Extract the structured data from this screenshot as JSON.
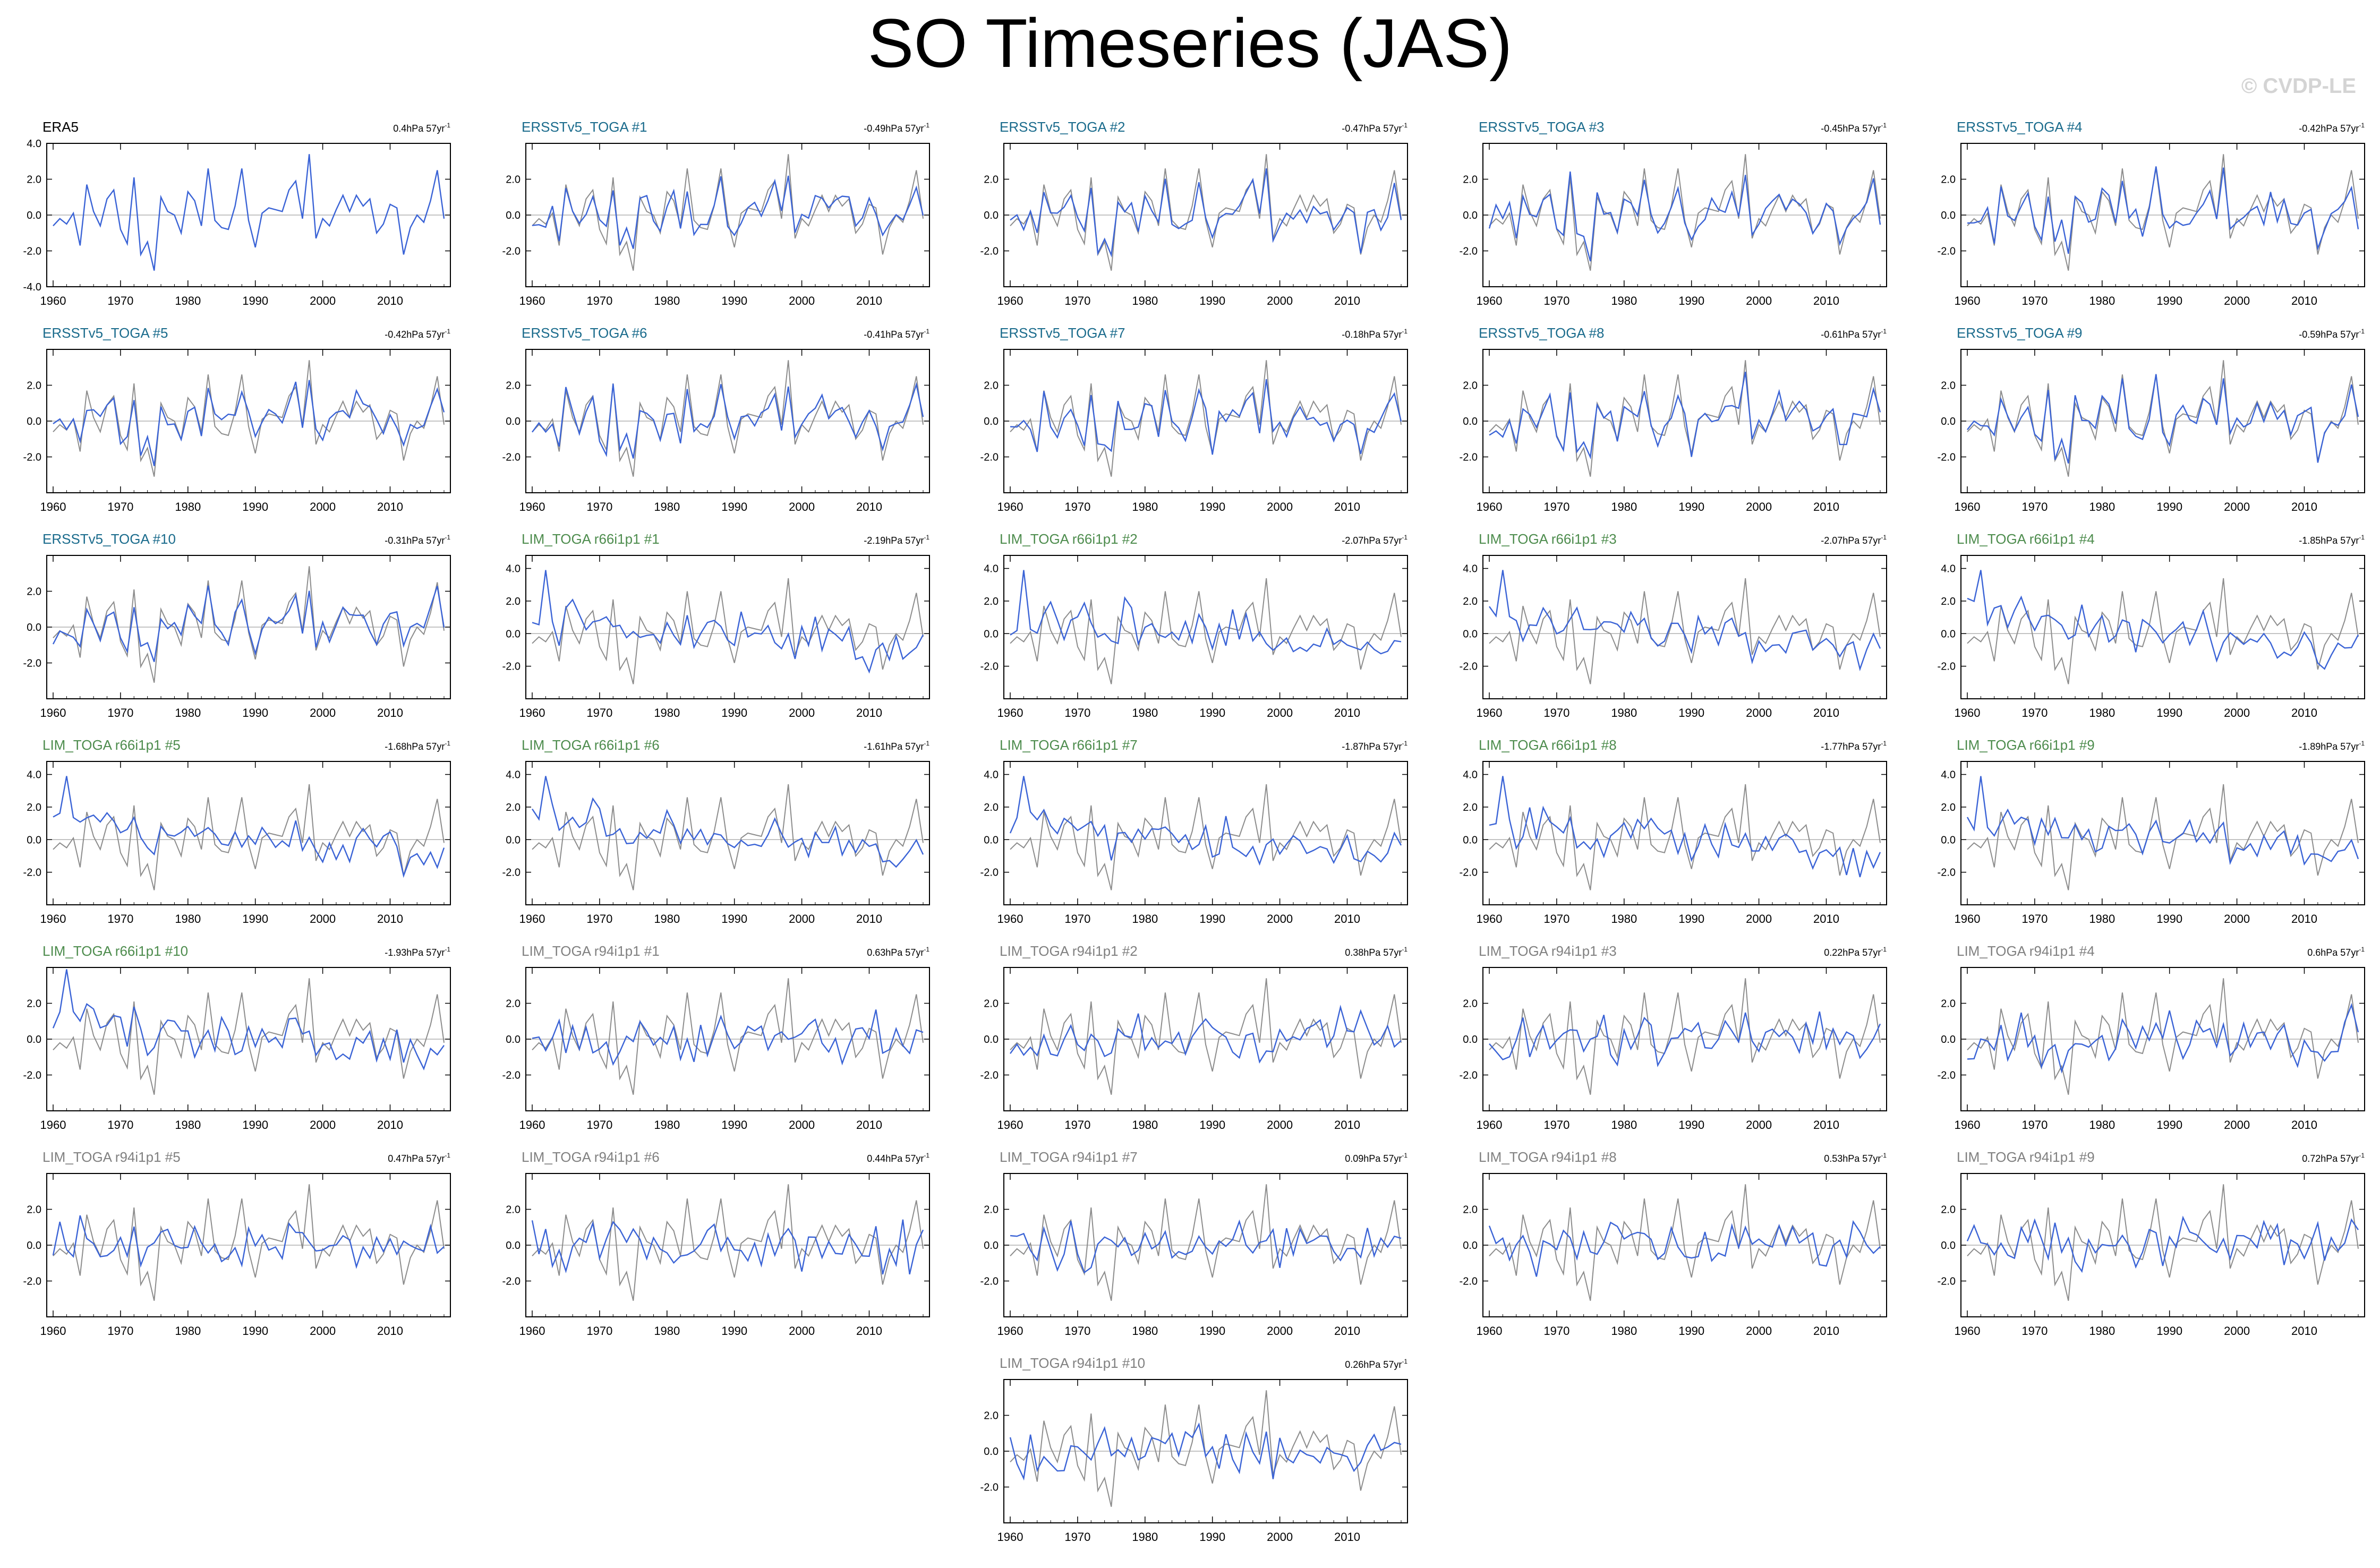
{
  "title": "SO Timeseries (JAS)",
  "watermark": "© CVDP-LE",
  "colors": {
    "obs_line": "#8c8c8c",
    "model_line": "#3a63d6",
    "zero_line": "#b0b0b0",
    "title_era5": "#000000",
    "title_ersst": "#1a6b8c",
    "title_lim66": "#4d8c4d",
    "title_lim94": "#808080"
  },
  "obs_values": [
    -0.6,
    -0.2,
    -0.5,
    0.1,
    -1.7,
    1.7,
    0.2,
    -0.6,
    0.9,
    1.4,
    -0.8,
    -1.6,
    2.1,
    -2.2,
    -1.5,
    -3.1,
    1.0,
    0.2,
    0.0,
    -1.0,
    1.3,
    0.8,
    -0.6,
    2.6,
    -0.3,
    -0.7,
    -0.8,
    0.5,
    2.6,
    -0.3,
    -1.8,
    0.1,
    0.4,
    0.3,
    0.2,
    1.4,
    1.9,
    -0.2,
    3.4,
    -1.3,
    -0.2,
    -0.6,
    0.3,
    1.1,
    0.2,
    1.1,
    0.5,
    0.9,
    -1.0,
    -0.5,
    0.6,
    0.4,
    -2.2,
    -0.7,
    0.0,
    -0.4,
    0.8,
    2.5,
    -0.2
  ],
  "chart_data": [
    {
      "type": "line",
      "title": "ERA5",
      "trend": "0.4hPa 57yr",
      "ylim": [
        -4,
        4
      ],
      "yticks": [
        "4.0",
        "2.0",
        "0.0",
        "-2.0",
        "-4.0"
      ],
      "x_start": 1960,
      "xticks": [
        "1960",
        "1970",
        "1980",
        "1990",
        "2000",
        "2010"
      ],
      "group": "era5",
      "seed": 0
    },
    {
      "type": "line",
      "title": "ERSSTv5_TOGA #1",
      "trend": "-0.49hPa 57yr",
      "ylim": [
        -4,
        4
      ],
      "yticks": [
        "2.0",
        "0.0",
        "-2.0"
      ],
      "x_start": 1960,
      "xticks": [
        "1960",
        "1970",
        "1980",
        "1990",
        "2000",
        "2010"
      ],
      "group": "ersst",
      "seed": 1
    },
    {
      "type": "line",
      "title": "ERSSTv5_TOGA #2",
      "trend": "-0.47hPa 57yr",
      "ylim": [
        -4,
        4
      ],
      "yticks": [
        "2.0",
        "0.0",
        "-2.0"
      ],
      "x_start": 1960,
      "xticks": [
        "1960",
        "1970",
        "1980",
        "1990",
        "2000",
        "2010"
      ],
      "group": "ersst",
      "seed": 2
    },
    {
      "type": "line",
      "title": "ERSSTv5_TOGA #3",
      "trend": "-0.45hPa 57yr",
      "ylim": [
        -4,
        4
      ],
      "yticks": [
        "2.0",
        "0.0",
        "-2.0"
      ],
      "x_start": 1960,
      "xticks": [
        "1960",
        "1970",
        "1980",
        "1990",
        "2000",
        "2010"
      ],
      "group": "ersst",
      "seed": 3
    },
    {
      "type": "line",
      "title": "ERSSTv5_TOGA #4",
      "trend": "-0.42hPa 57yr",
      "ylim": [
        -4,
        4
      ],
      "yticks": [
        "2.0",
        "0.0",
        "-2.0"
      ],
      "x_start": 1960,
      "xticks": [
        "1960",
        "1970",
        "1980",
        "1990",
        "2000",
        "2010"
      ],
      "group": "ersst",
      "seed": 4
    },
    {
      "type": "line",
      "title": "ERSSTv5_TOGA #5",
      "trend": "-0.42hPa 57yr",
      "ylim": [
        -4,
        4
      ],
      "yticks": [
        "2.0",
        "0.0",
        "-2.0"
      ],
      "x_start": 1960,
      "xticks": [
        "1960",
        "1970",
        "1980",
        "1990",
        "2000",
        "2010"
      ],
      "group": "ersst",
      "seed": 5
    },
    {
      "type": "line",
      "title": "ERSSTv5_TOGA #6",
      "trend": "-0.41hPa 57yr",
      "ylim": [
        -4,
        4
      ],
      "yticks": [
        "2.0",
        "0.0",
        "-2.0"
      ],
      "x_start": 1960,
      "xticks": [
        "1960",
        "1970",
        "1980",
        "1990",
        "2000",
        "2010"
      ],
      "group": "ersst",
      "seed": 6
    },
    {
      "type": "line",
      "title": "ERSSTv5_TOGA #7",
      "trend": "-0.18hPa 57yr",
      "ylim": [
        -4,
        4
      ],
      "yticks": [
        "2.0",
        "0.0",
        "-2.0"
      ],
      "x_start": 1960,
      "xticks": [
        "1960",
        "1970",
        "1980",
        "1990",
        "2000",
        "2010"
      ],
      "group": "ersst",
      "seed": 7
    },
    {
      "type": "line",
      "title": "ERSSTv5_TOGA #8",
      "trend": "-0.61hPa 57yr",
      "ylim": [
        -4,
        4
      ],
      "yticks": [
        "2.0",
        "0.0",
        "-2.0"
      ],
      "x_start": 1960,
      "xticks": [
        "1960",
        "1970",
        "1980",
        "1990",
        "2000",
        "2010"
      ],
      "group": "ersst",
      "seed": 8
    },
    {
      "type": "line",
      "title": "ERSSTv5_TOGA #9",
      "trend": "-0.59hPa 57yr",
      "ylim": [
        -4,
        4
      ],
      "yticks": [
        "2.0",
        "0.0",
        "-2.0"
      ],
      "x_start": 1960,
      "xticks": [
        "1960",
        "1970",
        "1980",
        "1990",
        "2000",
        "2010"
      ],
      "group": "ersst",
      "seed": 9
    },
    {
      "type": "line",
      "title": "ERSSTv5_TOGA #10",
      "trend": "-0.31hPa 57yr",
      "ylim": [
        -4,
        4
      ],
      "yticks": [
        "2.0",
        "0.0",
        "-2.0"
      ],
      "x_start": 1960,
      "xticks": [
        "1960",
        "1970",
        "1980",
        "1990",
        "2000",
        "2010"
      ],
      "group": "ersst",
      "seed": 10
    },
    {
      "type": "line",
      "title": "LIM_TOGA r66i1p1 #1",
      "trend": "-2.19hPa 57yr",
      "ylim": [
        -4,
        4.8
      ],
      "yticks": [
        "4.0",
        "2.0",
        "0.0",
        "-2.0"
      ],
      "x_start": 1960,
      "xticks": [
        "1960",
        "1970",
        "1980",
        "1990",
        "2000",
        "2010"
      ],
      "group": "lim66",
      "seed": 11
    },
    {
      "type": "line",
      "title": "LIM_TOGA r66i1p1 #2",
      "trend": "-2.07hPa 57yr",
      "ylim": [
        -4,
        4.8
      ],
      "yticks": [
        "4.0",
        "2.0",
        "0.0",
        "-2.0"
      ],
      "x_start": 1960,
      "xticks": [
        "1960",
        "1970",
        "1980",
        "1990",
        "2000",
        "2010"
      ],
      "group": "lim66",
      "seed": 12
    },
    {
      "type": "line",
      "title": "LIM_TOGA r66i1p1 #3",
      "trend": "-2.07hPa 57yr",
      "ylim": [
        -4,
        4.8
      ],
      "yticks": [
        "4.0",
        "2.0",
        "0.0",
        "-2.0"
      ],
      "x_start": 1960,
      "xticks": [
        "1960",
        "1970",
        "1980",
        "1990",
        "2000",
        "2010"
      ],
      "group": "lim66",
      "seed": 13
    },
    {
      "type": "line",
      "title": "LIM_TOGA r66i1p1 #4",
      "trend": "-1.85hPa 57yr",
      "ylim": [
        -4,
        4.8
      ],
      "yticks": [
        "4.0",
        "2.0",
        "0.0",
        "-2.0"
      ],
      "x_start": 1960,
      "xticks": [
        "1960",
        "1970",
        "1980",
        "1990",
        "2000",
        "2010"
      ],
      "group": "lim66",
      "seed": 14
    },
    {
      "type": "line",
      "title": "LIM_TOGA r66i1p1 #5",
      "trend": "-1.68hPa 57yr",
      "ylim": [
        -4,
        4.8
      ],
      "yticks": [
        "4.0",
        "2.0",
        "0.0",
        "-2.0"
      ],
      "x_start": 1960,
      "xticks": [
        "1960",
        "1970",
        "1980",
        "1990",
        "2000",
        "2010"
      ],
      "group": "lim66",
      "seed": 15
    },
    {
      "type": "line",
      "title": "LIM_TOGA r66i1p1 #6",
      "trend": "-1.61hPa 57yr",
      "ylim": [
        -4,
        4.8
      ],
      "yticks": [
        "4.0",
        "2.0",
        "0.0",
        "-2.0"
      ],
      "x_start": 1960,
      "xticks": [
        "1960",
        "1970",
        "1980",
        "1990",
        "2000",
        "2010"
      ],
      "group": "lim66",
      "seed": 16
    },
    {
      "type": "line",
      "title": "LIM_TOGA r66i1p1 #7",
      "trend": "-1.87hPa 57yr",
      "ylim": [
        -4,
        4.8
      ],
      "yticks": [
        "4.0",
        "2.0",
        "0.0",
        "-2.0"
      ],
      "x_start": 1960,
      "xticks": [
        "1960",
        "1970",
        "1980",
        "1990",
        "2000",
        "2010"
      ],
      "group": "lim66",
      "seed": 17
    },
    {
      "type": "line",
      "title": "LIM_TOGA r66i1p1 #8",
      "trend": "-1.77hPa 57yr",
      "ylim": [
        -4,
        4.8
      ],
      "yticks": [
        "4.0",
        "2.0",
        "0.0",
        "-2.0"
      ],
      "x_start": 1960,
      "xticks": [
        "1960",
        "1970",
        "1980",
        "1990",
        "2000",
        "2010"
      ],
      "group": "lim66",
      "seed": 18
    },
    {
      "type": "line",
      "title": "LIM_TOGA r66i1p1 #9",
      "trend": "-1.89hPa 57yr",
      "ylim": [
        -4,
        4.8
      ],
      "yticks": [
        "4.0",
        "2.0",
        "0.0",
        "-2.0"
      ],
      "x_start": 1960,
      "xticks": [
        "1960",
        "1970",
        "1980",
        "1990",
        "2000",
        "2010"
      ],
      "group": "lim66",
      "seed": 19
    },
    {
      "type": "line",
      "title": "LIM_TOGA r66i1p1 #10",
      "trend": "-1.93hPa 57yr",
      "ylim": [
        -4,
        4
      ],
      "yticks": [
        "2.0",
        "0.0",
        "-2.0"
      ],
      "x_start": 1960,
      "xticks": [
        "1960",
        "1970",
        "1980",
        "1990",
        "2000",
        "2010"
      ],
      "group": "lim66",
      "seed": 20
    },
    {
      "type": "line",
      "title": "LIM_TOGA r94i1p1 #1",
      "trend": "0.63hPa 57yr",
      "ylim": [
        -4,
        4
      ],
      "yticks": [
        "2.0",
        "0.0",
        "-2.0"
      ],
      "x_start": 1960,
      "xticks": [
        "1960",
        "1970",
        "1980",
        "1990",
        "2000",
        "2010"
      ],
      "group": "lim94",
      "seed": 21
    },
    {
      "type": "line",
      "title": "LIM_TOGA r94i1p1 #2",
      "trend": "0.38hPa 57yr",
      "ylim": [
        -4,
        4
      ],
      "yticks": [
        "2.0",
        "0.0",
        "-2.0"
      ],
      "x_start": 1960,
      "xticks": [
        "1960",
        "1970",
        "1980",
        "1990",
        "2000",
        "2010"
      ],
      "group": "lim94",
      "seed": 22
    },
    {
      "type": "line",
      "title": "LIM_TOGA r94i1p1 #3",
      "trend": "0.22hPa 57yr",
      "ylim": [
        -4,
        4
      ],
      "yticks": [
        "2.0",
        "0.0",
        "-2.0"
      ],
      "x_start": 1960,
      "xticks": [
        "1960",
        "1970",
        "1980",
        "1990",
        "2000",
        "2010"
      ],
      "group": "lim94",
      "seed": 23
    },
    {
      "type": "line",
      "title": "LIM_TOGA r94i1p1 #4",
      "trend": "0.6hPa 57yr",
      "ylim": [
        -4,
        4
      ],
      "yticks": [
        "2.0",
        "0.0",
        "-2.0"
      ],
      "x_start": 1960,
      "xticks": [
        "1960",
        "1970",
        "1980",
        "1990",
        "2000",
        "2010"
      ],
      "group": "lim94",
      "seed": 24
    },
    {
      "type": "line",
      "title": "LIM_TOGA r94i1p1 #5",
      "trend": "0.47hPa 57yr",
      "ylim": [
        -4,
        4
      ],
      "yticks": [
        "2.0",
        "0.0",
        "-2.0"
      ],
      "x_start": 1960,
      "xticks": [
        "1960",
        "1970",
        "1980",
        "1990",
        "2000",
        "2010"
      ],
      "group": "lim94",
      "seed": 25
    },
    {
      "type": "line",
      "title": "LIM_TOGA r94i1p1 #6",
      "trend": "0.44hPa 57yr",
      "ylim": [
        -4,
        4
      ],
      "yticks": [
        "2.0",
        "0.0",
        "-2.0"
      ],
      "x_start": 1960,
      "xticks": [
        "1960",
        "1970",
        "1980",
        "1990",
        "2000",
        "2010"
      ],
      "group": "lim94",
      "seed": 26
    },
    {
      "type": "line",
      "title": "LIM_TOGA r94i1p1 #7",
      "trend": "0.09hPa 57yr",
      "ylim": [
        -4,
        4
      ],
      "yticks": [
        "2.0",
        "0.0",
        "-2.0"
      ],
      "x_start": 1960,
      "xticks": [
        "1960",
        "1970",
        "1980",
        "1990",
        "2000",
        "2010"
      ],
      "group": "lim94",
      "seed": 27
    },
    {
      "type": "line",
      "title": "LIM_TOGA r94i1p1 #8",
      "trend": "0.53hPa 57yr",
      "ylim": [
        -4,
        4
      ],
      "yticks": [
        "2.0",
        "0.0",
        "-2.0"
      ],
      "x_start": 1960,
      "xticks": [
        "1960",
        "1970",
        "1980",
        "1990",
        "2000",
        "2010"
      ],
      "group": "lim94",
      "seed": 28
    },
    {
      "type": "line",
      "title": "LIM_TOGA r94i1p1 #9",
      "trend": "0.72hPa 57yr",
      "ylim": [
        -4,
        4
      ],
      "yticks": [
        "2.0",
        "0.0",
        "-2.0"
      ],
      "x_start": 1960,
      "xticks": [
        "1960",
        "1970",
        "1980",
        "1990",
        "2000",
        "2010"
      ],
      "group": "lim94",
      "seed": 29
    },
    {
      "type": "line",
      "title": "LIM_TOGA r94i1p1 #10",
      "trend": "0.26hPa 57yr",
      "ylim": [
        -4,
        4
      ],
      "yticks": [
        "2.0",
        "0.0",
        "-2.0"
      ],
      "x_start": 1960,
      "xticks": [
        "1960",
        "1970",
        "1980",
        "1990",
        "2000",
        "2010"
      ],
      "group": "lim94",
      "seed": 30
    }
  ]
}
